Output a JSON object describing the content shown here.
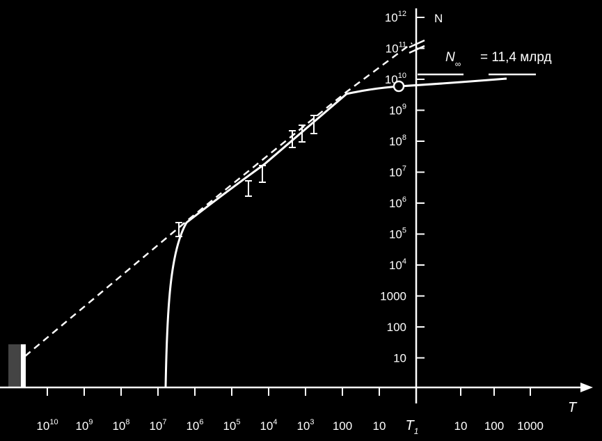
{
  "chart_data": {
    "type": "line",
    "title": "",
    "x_axis": {
      "label": "T",
      "scale": "log (reversed), time before T1",
      "tick_labels": [
        {
          "base": "10",
          "exp": "10",
          "value": 10000000000.0
        },
        {
          "base": "10",
          "exp": "9",
          "value": 1000000000.0
        },
        {
          "base": "10",
          "exp": "8",
          "value": 100000000.0
        },
        {
          "base": "10",
          "exp": "7",
          "value": 10000000.0
        },
        {
          "base": "10",
          "exp": "6",
          "value": 1000000.0
        },
        {
          "base": "10",
          "exp": "5",
          "value": 100000.0
        },
        {
          "base": "10",
          "exp": "4",
          "value": 10000.0
        },
        {
          "base": "10",
          "exp": "3",
          "value": 1000.0
        },
        {
          "base": "100",
          "exp": "",
          "value": 100
        },
        {
          "base": "10",
          "exp": "",
          "value": 10
        }
      ],
      "origin_label": {
        "base": "T",
        "sub": "1"
      },
      "after_tick_labels": [
        "10",
        "100",
        "1000"
      ]
    },
    "y_axis": {
      "label": "N",
      "scale": "log",
      "tick_labels": [
        {
          "base": "10",
          "exp": "12",
          "value": 1000000000000.0
        },
        {
          "base": "10",
          "exp": "11",
          "value": 100000000000.0
        },
        {
          "base": "10",
          "exp": "10",
          "value": 10000000000.0
        },
        {
          "base": "10",
          "exp": "9",
          "value": 1000000000.0
        },
        {
          "base": "10",
          "exp": "8",
          "value": 100000000.0
        },
        {
          "base": "10",
          "exp": "7",
          "value": 10000000.0
        },
        {
          "base": "10",
          "exp": "6",
          "value": 1000000.0
        },
        {
          "base": "10",
          "exp": "5",
          "value": 100000.0
        },
        {
          "base": "10",
          "exp": "4",
          "value": 10000.0
        },
        {
          "base": "1000",
          "exp": "",
          "value": 1000
        },
        {
          "base": "100",
          "exp": "",
          "value": 100
        },
        {
          "base": "10",
          "exp": "",
          "value": 10
        }
      ]
    },
    "annotation": {
      "symbol": "N",
      "sub": "∞",
      "text": "= 11,4 млрд"
    },
    "series": [
      {
        "style": "solid",
        "points": [
          [
            12000000.0,
            1
          ],
          [
            11500000.0,
            100
          ],
          [
            11000000.0,
            10000
          ],
          [
            8000000.0,
            160000.0
          ],
          [
            2000000.0,
            500000.0
          ],
          [
            100000.0,
            3000000.0
          ],
          [
            10000.0,
            16000000.0
          ],
          [
            1000.0,
            120000000.0
          ],
          [
            150,
            3000000000.0
          ],
          [
            5,
            6000000000.0
          ],
          [
            0,
            8000000000.0
          ],
          [
            150,
            11000000000.0
          ]
        ]
      },
      {
        "style": "dashed",
        "points": [
          [
            45000000000.0,
            10
          ],
          [
            10000000000.0,
            55
          ],
          [
            100000000.0,
            2000
          ],
          [
            1000000.0,
            90000.0
          ],
          [
            10000.0,
            5000000.0
          ],
          [
            1000.0,
            50000000.0
          ],
          [
            100,
            2000000000.0
          ],
          [
            15,
            23000000000.0
          ],
          [
            1,
            150000000000.0
          ]
        ]
      }
    ],
    "error_bars": [
      {
        "t": 4000000.0,
        "n": 160000.0,
        "low": 100000.0,
        "high": 260000.0
      },
      {
        "t": 35000.0,
        "n": 500000.0,
        "low": 300000.0,
        "high": 800000.0
      },
      {
        "t": 10000.0,
        "n": 1300000.0,
        "low": 700000.0,
        "high": 2000000.0
      },
      {
        "t": 2500.0,
        "n": 13000000.0,
        "low": 7000000.0,
        "high": 25000000.0
      },
      {
        "t": 1200.0,
        "n": 20000000.0,
        "low": 11000000.0,
        "high": 35000000.0
      },
      {
        "t": 700,
        "n": 40000000.0,
        "low": 20000000.0,
        "high": 70000000.0
      }
    ],
    "marker_circle": {
      "t": 5,
      "n": 6000000000.0
    },
    "grid": false,
    "legend": "none"
  }
}
